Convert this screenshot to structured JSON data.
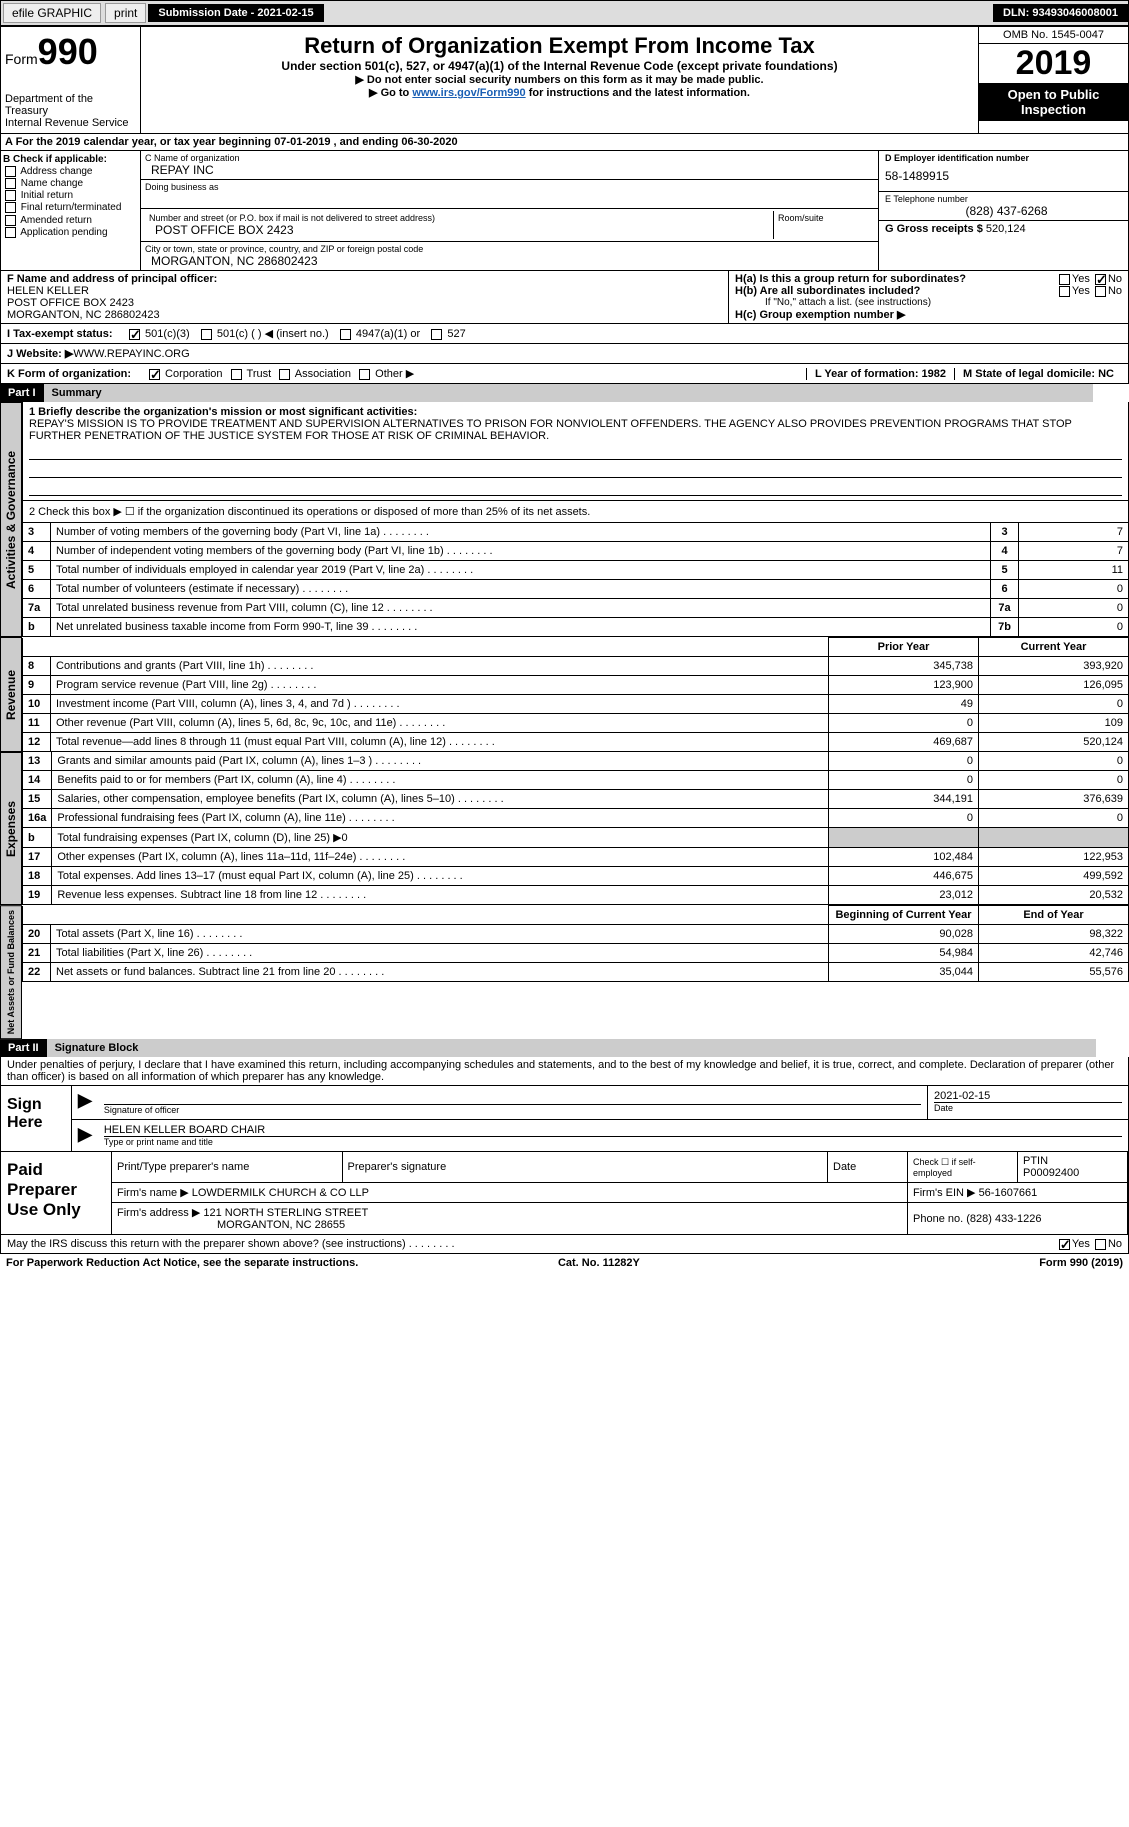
{
  "topbar": {
    "efile": "efile GRAPHIC",
    "print": "print",
    "submission": "Submission Date - 2021-02-15",
    "dln": "DLN: 93493046008001"
  },
  "header": {
    "form": "Form",
    "formnum": "990",
    "dept": "Department of the Treasury\nInternal Revenue Service",
    "title": "Return of Organization Exempt From Income Tax",
    "subtitle": "Under section 501(c), 527, or 4947(a)(1) of the Internal Revenue Code (except private foundations)",
    "instr1": "▶ Do not enter social security numbers on this form as it may be made public.",
    "instr2a": "▶ Go to ",
    "instr2link": "www.irs.gov/Form990",
    "instr2b": " for instructions and the latest information.",
    "omb": "OMB No. 1545-0047",
    "year": "2019",
    "otp": "Open to Public Inspection"
  },
  "line_a": "A For the 2019 calendar year, or tax year beginning 07-01-2019   , and ending 06-30-2020",
  "col_b": {
    "hdr": "B Check if applicable:",
    "items": [
      "Address change",
      "Name change",
      "Initial return",
      "Final return/terminated",
      "Amended return",
      "Application pending"
    ]
  },
  "col_c": {
    "name_lbl": "C Name of organization",
    "name": "REPAY INC",
    "dba_lbl": "Doing business as",
    "addr_lbl": "Number and street (or P.O. box if mail is not delivered to street address)",
    "room_lbl": "Room/suite",
    "addr": "POST OFFICE BOX 2423",
    "city_lbl": "City or town, state or province, country, and ZIP or foreign postal code",
    "city": "MORGANTON, NC  286802423"
  },
  "col_d": {
    "ein_lbl": "D Employer identification number",
    "ein": "58-1489915",
    "tel_lbl": "E Telephone number",
    "tel": "(828) 437-6268",
    "gross_lbl": "G Gross receipts $",
    "gross": "520,124"
  },
  "f": {
    "lbl": "F Name and address of principal officer:",
    "name": "HELEN KELLER",
    "addr1": "POST OFFICE BOX 2423",
    "addr2": "MORGANTON, NC  286802423"
  },
  "h": {
    "a": "H(a)  Is this a group return for subordinates?",
    "b": "H(b)  Are all subordinates included?",
    "bnote": "If \"No,\" attach a list. (see instructions)",
    "c": "H(c)  Group exemption number ▶"
  },
  "i": "I  Tax-exempt status:",
  "i_opts": [
    "501(c)(3)",
    "501(c) (  ) ◀ (insert no.)",
    "4947(a)(1) or",
    "527"
  ],
  "j_lbl": "J  Website: ▶",
  "j_val": " WWW.REPAYINC.ORG",
  "k": "K Form of organization:",
  "k_opts": [
    "Corporation",
    "Trust",
    "Association",
    "Other ▶"
  ],
  "l": "L Year of formation: 1982",
  "m": "M State of legal domicile: NC",
  "part1": {
    "hdr": "Part I",
    "title": "Summary",
    "tab1": "Activities & Governance",
    "tab2": "Revenue",
    "tab3": "Expenses",
    "tab4": "Net Assets or Fund Balances",
    "q1": "1  Briefly describe the organization's mission or most significant activities:",
    "mission": "REPAY'S MISSION IS TO PROVIDE TREATMENT AND SUPERVISION ALTERNATIVES TO PRISON FOR NONVIOLENT OFFENDERS. THE AGENCY ALSO PROVIDES PREVENTION PROGRAMS THAT STOP FURTHER PENETRATION OF THE JUSTICE SYSTEM FOR THOSE AT RISK OF CRIMINAL BEHAVIOR.",
    "q2": "2  Check this box ▶ ☐  if the organization discontinued its operations or disposed of more than 25% of its net assets.",
    "rows_gov": [
      {
        "n": "3",
        "t": "Number of voting members of the governing body (Part VI, line 1a)",
        "box": "3",
        "v": "7"
      },
      {
        "n": "4",
        "t": "Number of independent voting members of the governing body (Part VI, line 1b)",
        "box": "4",
        "v": "7"
      },
      {
        "n": "5",
        "t": "Total number of individuals employed in calendar year 2019 (Part V, line 2a)",
        "box": "5",
        "v": "11"
      },
      {
        "n": "6",
        "t": "Total number of volunteers (estimate if necessary)",
        "box": "6",
        "v": "0"
      },
      {
        "n": "7a",
        "t": "Total unrelated business revenue from Part VIII, column (C), line 12",
        "box": "7a",
        "v": "0"
      },
      {
        "n": "b",
        "t": "Net unrelated business taxable income from Form 990-T, line 39",
        "box": "7b",
        "v": "0"
      }
    ],
    "col_prior": "Prior Year",
    "col_curr": "Current Year",
    "rows_rev": [
      {
        "n": "8",
        "t": "Contributions and grants (Part VIII, line 1h)",
        "p": "345,738",
        "c": "393,920"
      },
      {
        "n": "9",
        "t": "Program service revenue (Part VIII, line 2g)",
        "p": "123,900",
        "c": "126,095"
      },
      {
        "n": "10",
        "t": "Investment income (Part VIII, column (A), lines 3, 4, and 7d )",
        "p": "49",
        "c": "0"
      },
      {
        "n": "11",
        "t": "Other revenue (Part VIII, column (A), lines 5, 6d, 8c, 9c, 10c, and 11e)",
        "p": "0",
        "c": "109"
      },
      {
        "n": "12",
        "t": "Total revenue—add lines 8 through 11 (must equal Part VIII, column (A), line 12)",
        "p": "469,687",
        "c": "520,124"
      }
    ],
    "rows_exp": [
      {
        "n": "13",
        "t": "Grants and similar amounts paid (Part IX, column (A), lines 1–3 )",
        "p": "0",
        "c": "0"
      },
      {
        "n": "14",
        "t": "Benefits paid to or for members (Part IX, column (A), line 4)",
        "p": "0",
        "c": "0"
      },
      {
        "n": "15",
        "t": "Salaries, other compensation, employee benefits (Part IX, column (A), lines 5–10)",
        "p": "344,191",
        "c": "376,639"
      },
      {
        "n": "16a",
        "t": "Professional fundraising fees (Part IX, column (A), line 11e)",
        "p": "0",
        "c": "0"
      },
      {
        "n": "b",
        "t": "Total fundraising expenses (Part IX, column (D), line 25) ▶0",
        "p": "",
        "c": "",
        "shade": true
      },
      {
        "n": "17",
        "t": "Other expenses (Part IX, column (A), lines 11a–11d, 11f–24e)",
        "p": "102,484",
        "c": "122,953"
      },
      {
        "n": "18",
        "t": "Total expenses. Add lines 13–17 (must equal Part IX, column (A), line 25)",
        "p": "446,675",
        "c": "499,592"
      },
      {
        "n": "19",
        "t": "Revenue less expenses. Subtract line 18 from line 12",
        "p": "23,012",
        "c": "20,532"
      }
    ],
    "col_beg": "Beginning of Current Year",
    "col_end": "End of Year",
    "rows_net": [
      {
        "n": "20",
        "t": "Total assets (Part X, line 16)",
        "p": "90,028",
        "c": "98,322"
      },
      {
        "n": "21",
        "t": "Total liabilities (Part X, line 26)",
        "p": "54,984",
        "c": "42,746"
      },
      {
        "n": "22",
        "t": "Net assets or fund balances. Subtract line 21 from line 20",
        "p": "35,044",
        "c": "55,576"
      }
    ]
  },
  "part2": {
    "hdr": "Part II",
    "title": "Signature Block",
    "decl": "Under penalties of perjury, I declare that I have examined this return, including accompanying schedules and statements, and to the best of my knowledge and belief, it is true, correct, and complete. Declaration of preparer (other than officer) is based on all information of which preparer has any knowledge.",
    "sign": "Sign Here",
    "sig_off": "Signature of officer",
    "date": "Date",
    "date_val": "2021-02-15",
    "name_title": "HELEN KELLER  BOARD CHAIR",
    "name_lbl": "Type or print name and title",
    "paid": "Paid Preparer Use Only",
    "prep_name_lbl": "Print/Type preparer's name",
    "prep_sig_lbl": "Preparer's signature",
    "prep_date_lbl": "Date",
    "self_emp": "Check ☐ if self-employed",
    "ptin_lbl": "PTIN",
    "ptin": "P00092400",
    "firm_name_lbl": "Firm's name    ▶",
    "firm_name": "LOWDERMILK CHURCH & CO LLP",
    "firm_ein_lbl": "Firm's EIN ▶",
    "firm_ein": "56-1607661",
    "firm_addr_lbl": "Firm's address ▶",
    "firm_addr": "121 NORTH STERLING STREET",
    "firm_city": "MORGANTON, NC  28655",
    "phone_lbl": "Phone no.",
    "phone": "(828) 433-1226"
  },
  "footer": {
    "q": "May the IRS discuss this return with the preparer shown above? (see instructions)",
    "yes": "Yes",
    "no": "No"
  },
  "bottom": {
    "l": "For Paperwork Reduction Act Notice, see the separate instructions.",
    "c": "Cat. No. 11282Y",
    "r": "Form 990 (2019)"
  }
}
